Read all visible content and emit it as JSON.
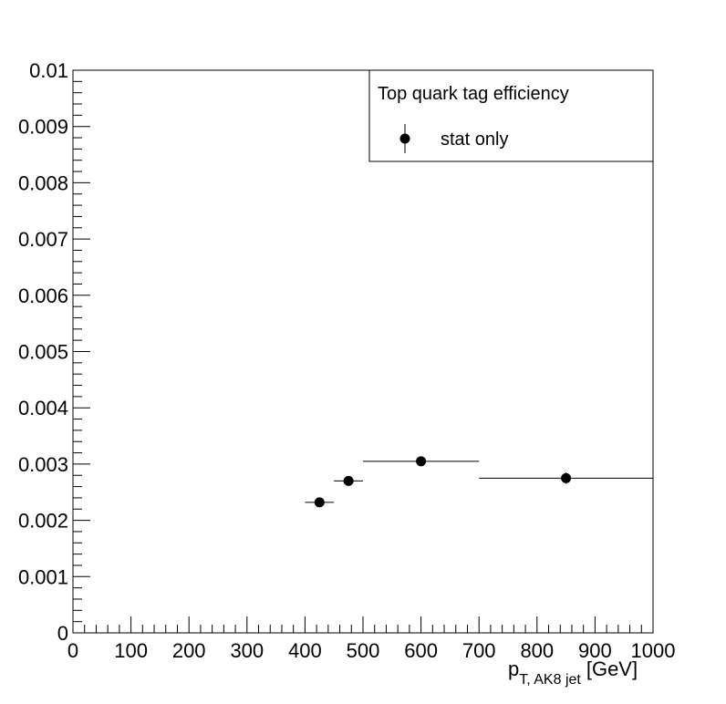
{
  "chart_data": {
    "type": "scatter",
    "title": "",
    "xlabel": {
      "main": "p",
      "subscript": "T, AK8 jet",
      "unit": "[GeV]"
    },
    "ylabel": "",
    "xlim": [
      0,
      1000
    ],
    "ylim": [
      0,
      0.01
    ],
    "x_ticks": [
      "0",
      "100",
      "200",
      "300",
      "400",
      "500",
      "600",
      "700",
      "800",
      "900",
      "1000"
    ],
    "x_tick_values": [
      0,
      100,
      200,
      300,
      400,
      500,
      600,
      700,
      800,
      900,
      1000
    ],
    "y_ticks": [
      "0",
      "0.001",
      "0.002",
      "0.003",
      "0.004",
      "0.005",
      "0.006",
      "0.007",
      "0.008",
      "0.009",
      "0.01"
    ],
    "y_tick_values": [
      0,
      0.001,
      0.002,
      0.003,
      0.004,
      0.005,
      0.006,
      0.007,
      0.008,
      0.009,
      0.01
    ],
    "grid": false,
    "legend": {
      "title": "Top quark tag efficiency",
      "placement": "top-right",
      "entries": [
        "stat only"
      ]
    },
    "series": [
      {
        "name": "stat only",
        "marker": "filled-circle",
        "color": "#000000",
        "points": [
          {
            "x": 425,
            "x_low": 400,
            "x_high": 450,
            "y": 0.00232,
            "y_err": 4e-05
          },
          {
            "x": 475,
            "x_low": 450,
            "x_high": 500,
            "y": 0.0027,
            "y_err": 4e-05
          },
          {
            "x": 600,
            "x_low": 500,
            "x_high": 700,
            "y": 0.00305,
            "y_err": 4e-05
          },
          {
            "x": 850,
            "x_low": 700,
            "x_high": 1000,
            "y": 0.00275,
            "y_err": 0.0001
          }
        ]
      }
    ]
  }
}
